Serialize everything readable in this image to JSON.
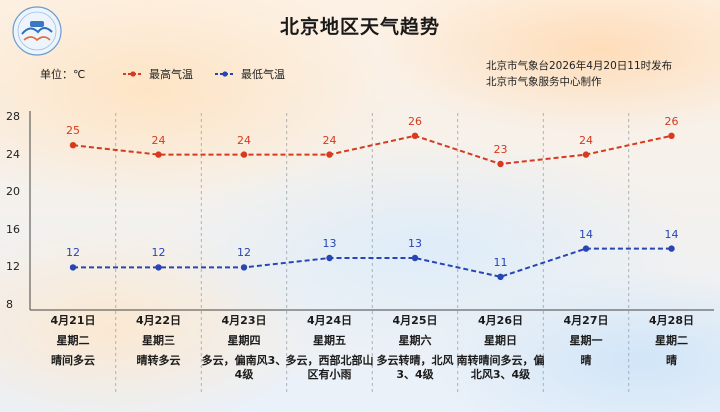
{
  "title": "北京地区天气趋势",
  "publisher": [
    "北京市气象台2026年4月20日11时发布",
    "北京市气象服务中心制作"
  ],
  "unit_label": "单位：℃",
  "colors": {
    "high": "#d63a1f",
    "low": "#2745b5"
  },
  "chart_data": {
    "type": "line",
    "title": "北京地区天气趋势",
    "x": [
      "4月21日",
      "4月22日",
      "4月23日",
      "4月24日",
      "4月25日",
      "4月26日",
      "4月27日",
      "4月28日"
    ],
    "weekdays": [
      "星期二",
      "星期三",
      "星期四",
      "星期五",
      "星期六",
      "星期日",
      "星期一",
      "星期二"
    ],
    "weather": [
      "晴间多云",
      "晴转多云",
      "多云，偏南风3、4级",
      "多云，西部北部山区有小雨",
      "多云转晴，北风3、4级",
      "南转晴间多云，偏北风3、4级",
      "晴",
      "晴"
    ],
    "series": [
      {
        "name": "最高气温",
        "values": [
          25,
          24,
          24,
          24,
          26,
          23,
          24,
          26
        ]
      },
      {
        "name": "最低气温",
        "values": [
          12,
          12,
          12,
          13,
          13,
          11,
          14,
          14
        ]
      }
    ],
    "ylim": [
      8,
      28
    ],
    "yticks": [
      8,
      12,
      16,
      20,
      24,
      28
    ],
    "ylabel": "单位：℃",
    "grid": "vertical dashed",
    "legend": "top"
  }
}
